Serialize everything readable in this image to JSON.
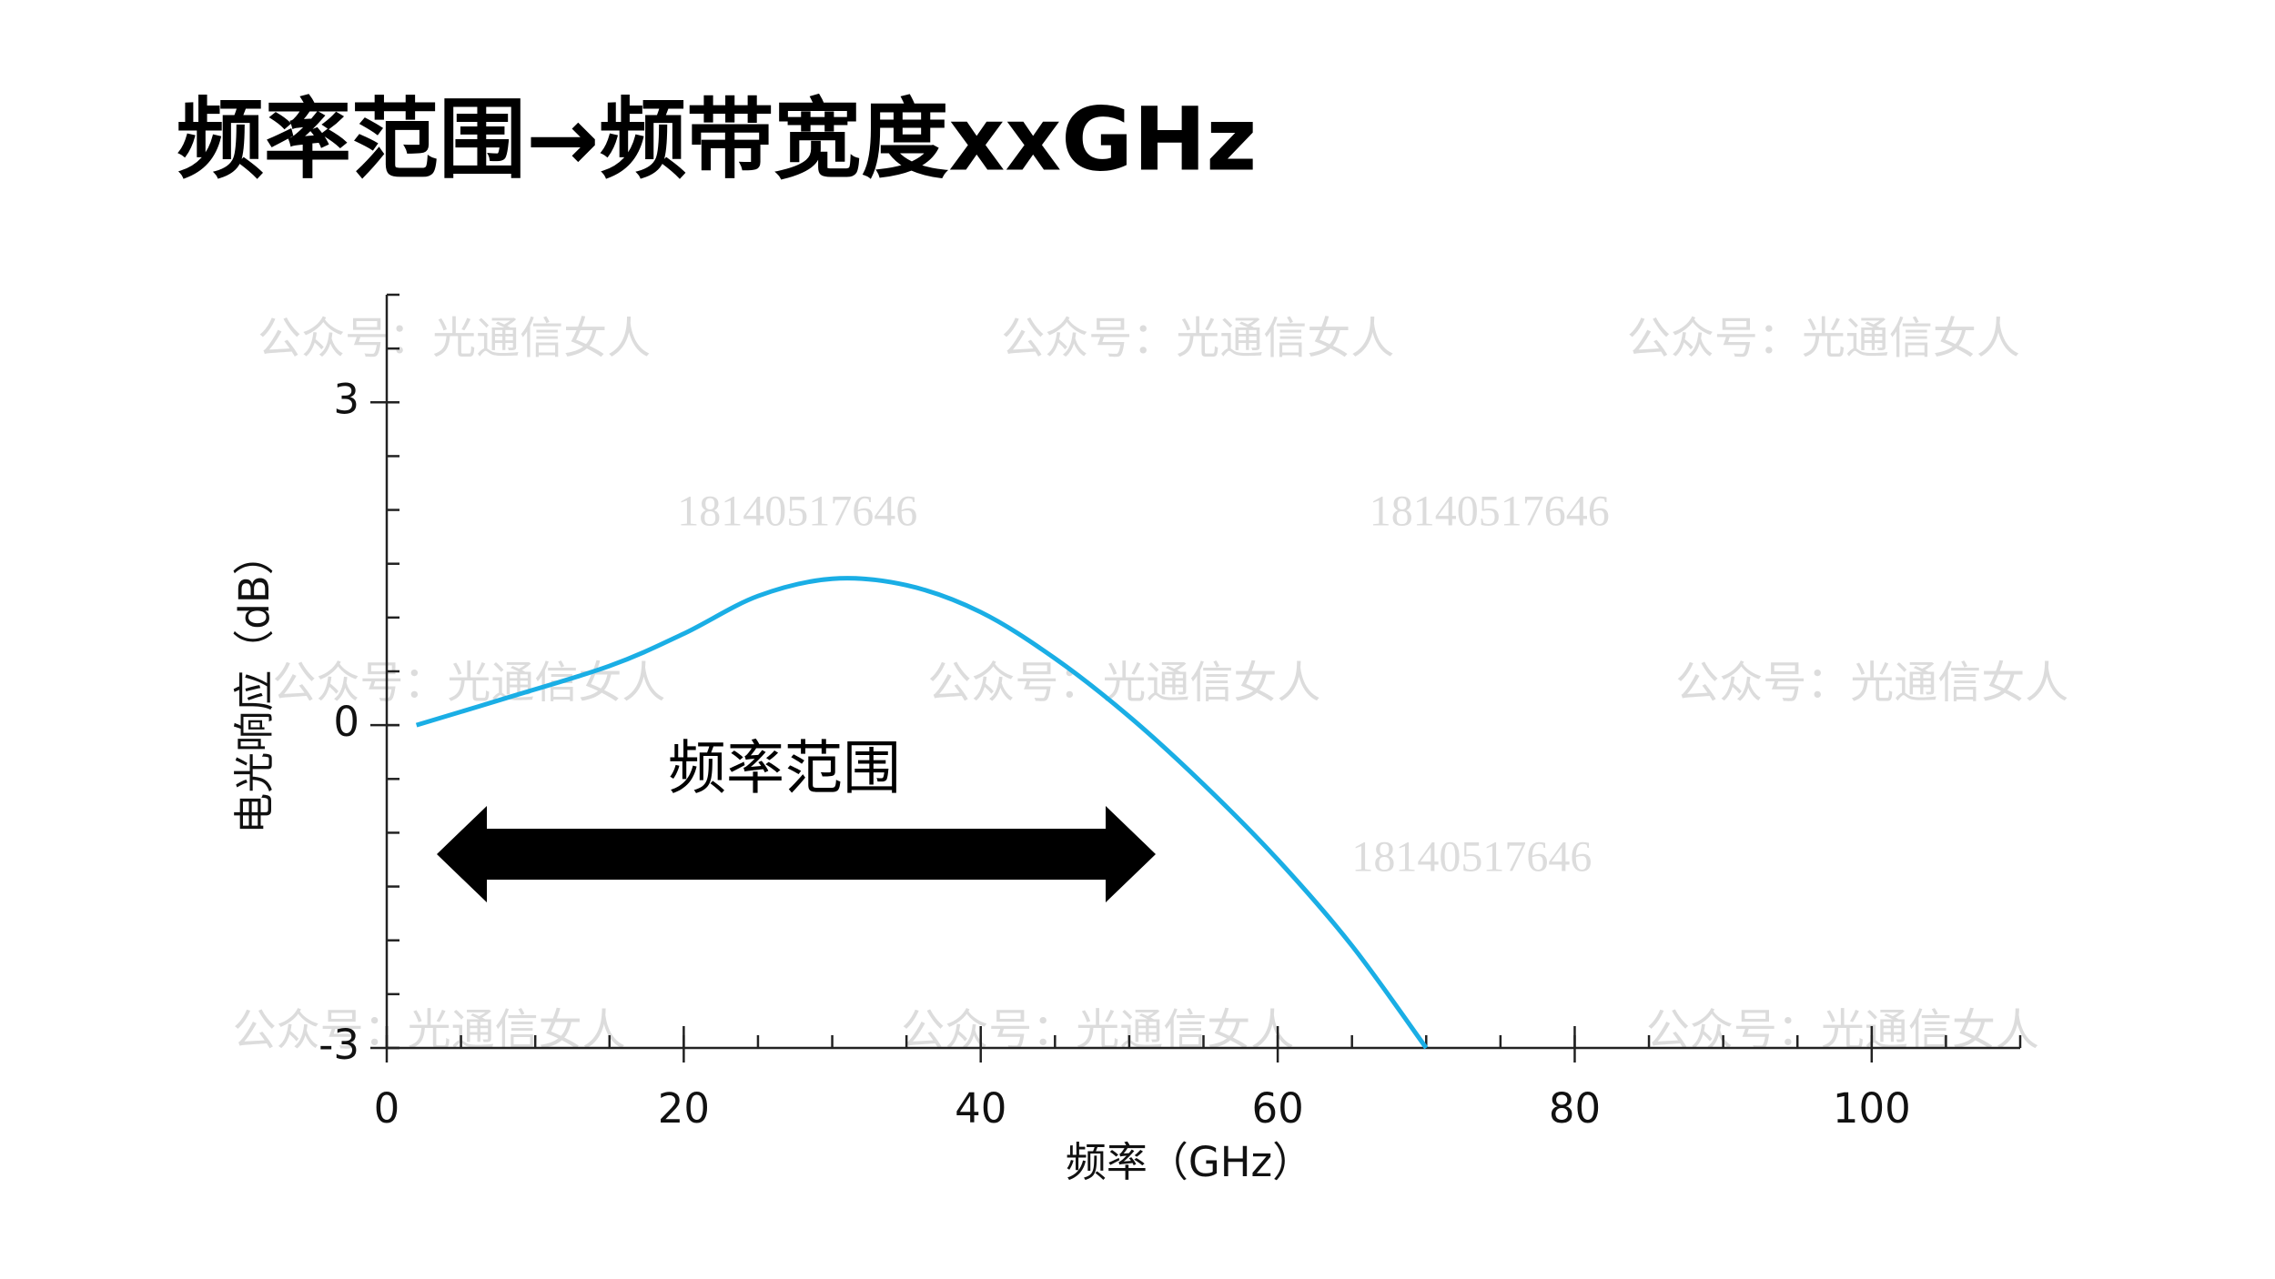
{
  "chart_data": {
    "type": "line",
    "title": "频率范围→频带宽度xxGHz",
    "x_label": "频率（GHz）",
    "y_label": "电光响应（dB）",
    "annotation": "频率范围",
    "watermarks": [
      "公众号：光通信女人",
      "18140517646"
    ],
    "xlim": [
      0,
      110
    ],
    "xticks": [
      0,
      20,
      40,
      60,
      80,
      100
    ],
    "ylim": [
      -3,
      4
    ],
    "yticks": [
      -3,
      0,
      3
    ],
    "series": [
      {
        "color": "#1aaee5",
        "x": [
          2,
          8,
          15,
          20,
          25,
          30,
          35,
          40,
          45,
          50,
          55,
          60,
          65,
          70
        ],
        "values": [
          0,
          0.25,
          0.55,
          0.85,
          1.2,
          1.36,
          1.3,
          1.05,
          0.62,
          0.08,
          -0.55,
          -1.25,
          -2.05,
          -3
        ]
      }
    ]
  }
}
